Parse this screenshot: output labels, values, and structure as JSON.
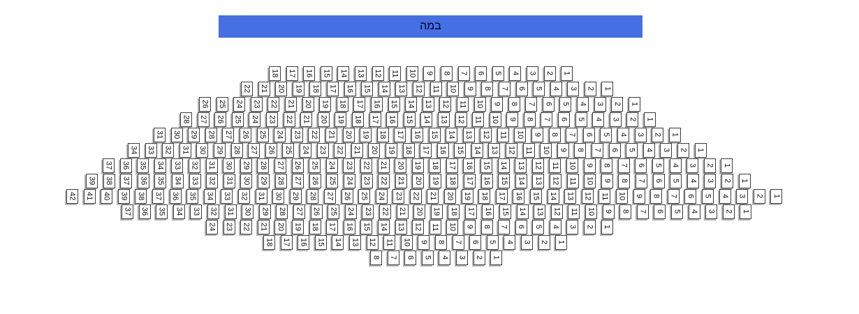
{
  "stage": {
    "label": "במה",
    "bg_color": "#4470e4"
  },
  "seatmap": {
    "rows": [
      {
        "name": "row-1",
        "seat_labels": [
          18,
          17,
          16,
          15,
          14,
          13,
          12,
          11,
          10,
          9,
          8,
          7,
          6,
          5,
          4,
          3,
          2,
          1
        ]
      },
      {
        "name": "row-2",
        "seat_labels": [
          22,
          21,
          20,
          19,
          18,
          17,
          16,
          15,
          14,
          13,
          12,
          11,
          10,
          9,
          8,
          7,
          6,
          5,
          4,
          3,
          2,
          1
        ]
      },
      {
        "name": "row-3",
        "seat_labels": [
          26,
          25,
          24,
          23,
          22,
          21,
          20,
          19,
          18,
          17,
          16,
          15,
          14,
          13,
          12,
          11,
          10,
          9,
          8,
          7,
          6,
          5,
          4,
          3,
          2,
          1
        ]
      },
      {
        "name": "row-4",
        "seat_labels": [
          28,
          27,
          26,
          25,
          24,
          23,
          22,
          21,
          20,
          19,
          18,
          17,
          16,
          15,
          14,
          13,
          12,
          11,
          10,
          9,
          8,
          7,
          6,
          5,
          4,
          3,
          2,
          1
        ]
      },
      {
        "name": "row-5",
        "seat_labels": [
          31,
          30,
          29,
          28,
          27,
          26,
          25,
          24,
          23,
          22,
          21,
          20,
          19,
          18,
          17,
          16,
          15,
          14,
          13,
          12,
          11,
          10,
          9,
          8,
          7,
          6,
          5,
          4,
          3,
          2,
          1
        ]
      },
      {
        "name": "row-6",
        "seat_labels": [
          34,
          33,
          32,
          31,
          30,
          29,
          28,
          27,
          26,
          25,
          24,
          23,
          22,
          21,
          20,
          19,
          18,
          17,
          16,
          15,
          14,
          13,
          12,
          11,
          10,
          9,
          8,
          7,
          6,
          5,
          4,
          3,
          2,
          1
        ]
      },
      {
        "name": "row-7",
        "seat_labels": [
          37,
          36,
          35,
          34,
          33,
          32,
          31,
          30,
          29,
          28,
          27,
          26,
          25,
          24,
          23,
          22,
          21,
          20,
          19,
          18,
          17,
          16,
          15,
          14,
          13,
          12,
          11,
          10,
          9,
          8,
          7,
          6,
          5,
          4,
          3,
          2,
          1
        ]
      },
      {
        "name": "row-8",
        "seat_labels": [
          39,
          38,
          37,
          36,
          35,
          34,
          33,
          32,
          31,
          30,
          29,
          28,
          27,
          26,
          25,
          24,
          23,
          22,
          21,
          20,
          19,
          18,
          17,
          16,
          15,
          14,
          13,
          12,
          11,
          10,
          9,
          8,
          7,
          6,
          5,
          4,
          3,
          2,
          1
        ]
      },
      {
        "name": "row-9",
        "seat_labels": [
          42,
          41,
          40,
          39,
          38,
          37,
          36,
          35,
          34,
          33,
          32,
          31,
          30,
          29,
          28,
          27,
          26,
          25,
          24,
          23,
          22,
          21,
          20,
          19,
          18,
          17,
          16,
          15,
          14,
          13,
          12,
          11,
          10,
          9,
          8,
          7,
          6,
          5,
          4,
          3,
          2,
          1
        ]
      },
      {
        "name": "row-10",
        "seat_labels": [
          37,
          36,
          35,
          34,
          33,
          32,
          31,
          30,
          29,
          28,
          27,
          26,
          25,
          24,
          23,
          22,
          21,
          20,
          19,
          18,
          17,
          16,
          15,
          14,
          13,
          12,
          11,
          10,
          9,
          8,
          7,
          6,
          5,
          4,
          3,
          2,
          1
        ]
      },
      {
        "name": "row-11",
        "seat_labels": [
          24,
          23,
          22,
          21,
          20,
          19,
          18,
          17,
          16,
          15,
          14,
          13,
          12,
          11,
          10,
          9,
          8,
          7,
          6,
          5,
          4,
          3,
          2,
          1
        ]
      },
      {
        "name": "row-12",
        "seat_labels": [
          18,
          17,
          16,
          15,
          14,
          13,
          12,
          11,
          10,
          9,
          8,
          7,
          6,
          5,
          4,
          3,
          2,
          1
        ]
      },
      {
        "name": "row-13",
        "seat_labels": [
          8,
          7,
          6,
          5,
          4,
          3,
          2,
          1
        ]
      }
    ]
  }
}
